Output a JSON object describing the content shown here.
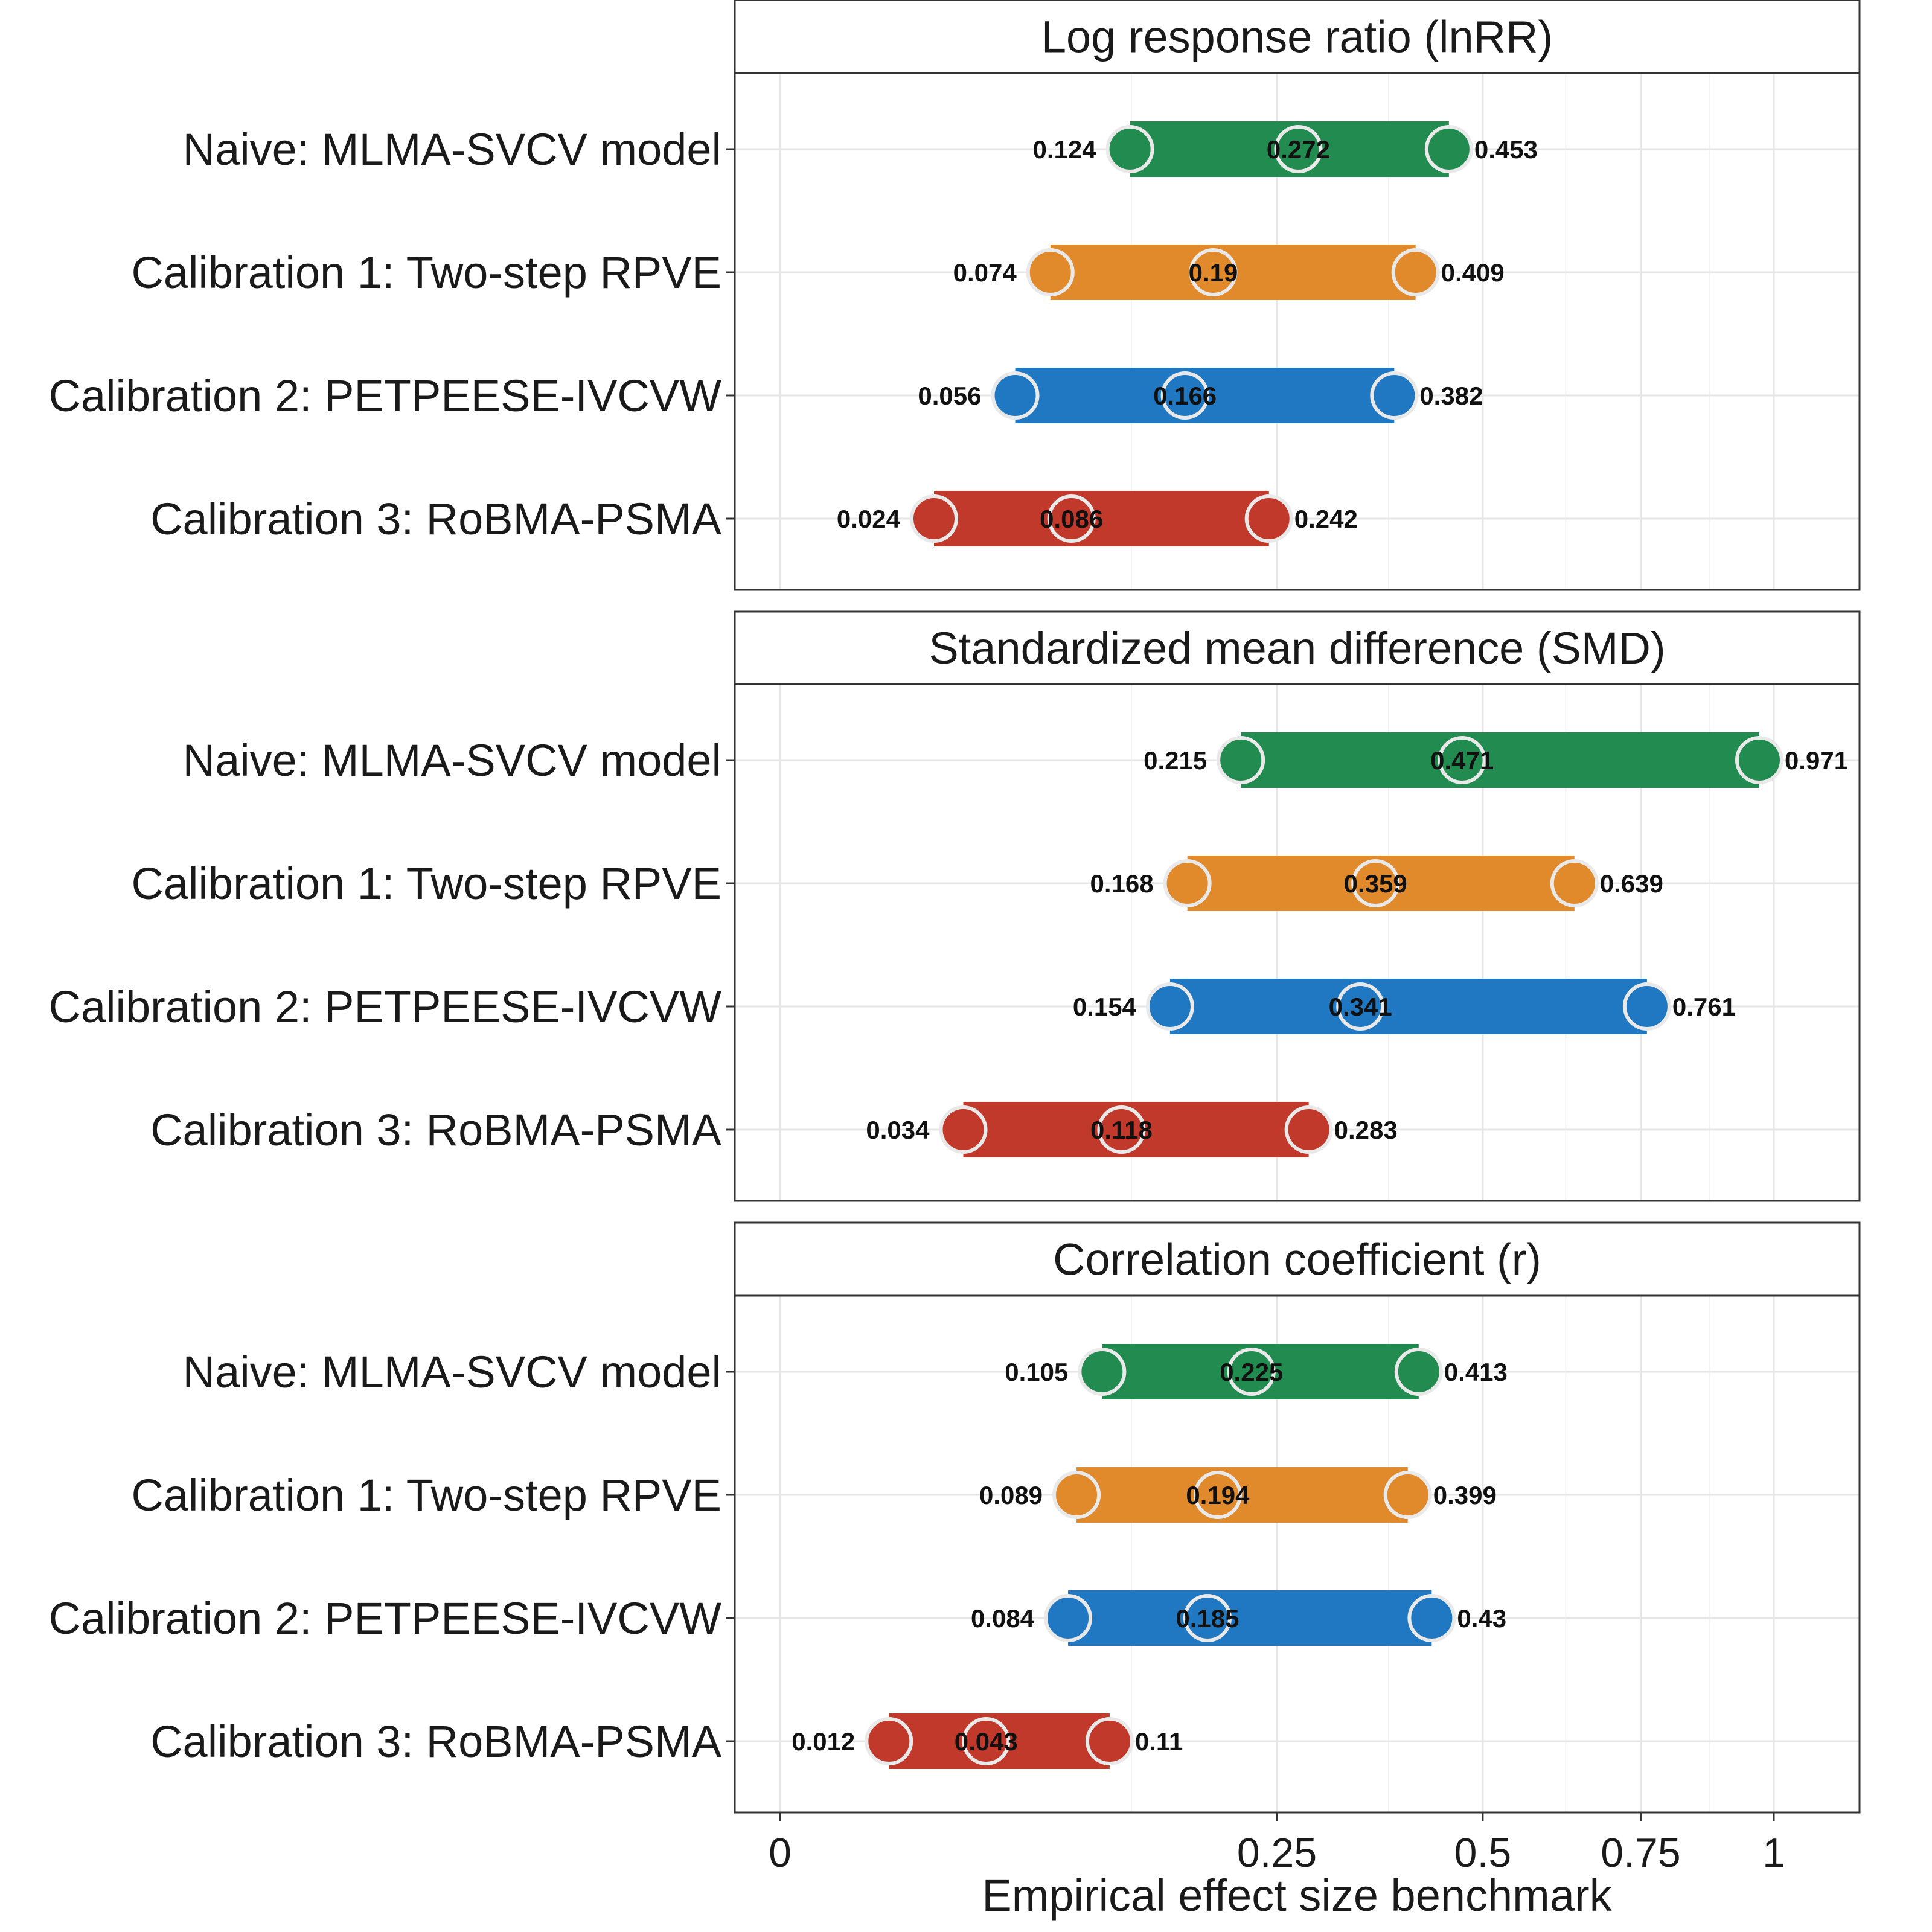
{
  "chart_data": {
    "type": "dot-range",
    "xlabel": "Empirical effect size benchmark",
    "xlim": [
      0,
      1.05
    ],
    "xticks": [
      0,
      0.25,
      0.5,
      0.75,
      1
    ],
    "xtick_labels": [
      "0",
      "0.25",
      "0.5",
      "0.75",
      "1"
    ],
    "grid": true,
    "x_scale": "sqrt",
    "series_colors": [
      "#228B50",
      "#E08A2C",
      "#1F78C1",
      "#C0392B"
    ],
    "panels": [
      {
        "title": "Log response ratio (lnRR)",
        "rows": [
          {
            "label": "Naive: MLMA-SVCV model",
            "low": 0.124,
            "mid": 0.272,
            "high": 0.453,
            "low_label": "0.124",
            "mid_label": "0.272",
            "high_label": "0.453"
          },
          {
            "label": "Calibration 1: Two-step RPVE",
            "low": 0.074,
            "mid": 0.19,
            "high": 0.409,
            "low_label": "0.074",
            "mid_label": "0.19",
            "high_label": "0.409"
          },
          {
            "label": "Calibration 2: PETPEESE-IVCVW",
            "low": 0.056,
            "mid": 0.166,
            "high": 0.382,
            "low_label": "0.056",
            "mid_label": "0.166",
            "high_label": "0.382"
          },
          {
            "label": "Calibration 3: RoBMA-PSMA",
            "low": 0.024,
            "mid": 0.086,
            "high": 0.242,
            "low_label": "0.024",
            "mid_label": "0.086",
            "high_label": "0.242"
          }
        ]
      },
      {
        "title": "Standardized mean difference (SMD)",
        "rows": [
          {
            "label": "Naive: MLMA-SVCV model",
            "low": 0.215,
            "mid": 0.471,
            "high": 0.971,
            "low_label": "0.215",
            "mid_label": "0.471",
            "high_label": "0.971"
          },
          {
            "label": "Calibration 1: Two-step RPVE",
            "low": 0.168,
            "mid": 0.359,
            "high": 0.639,
            "low_label": "0.168",
            "mid_label": "0.359",
            "high_label": "0.639"
          },
          {
            "label": "Calibration 2: PETPEESE-IVCVW",
            "low": 0.154,
            "mid": 0.341,
            "high": 0.761,
            "low_label": "0.154",
            "mid_label": "0.341",
            "high_label": "0.761"
          },
          {
            "label": "Calibration 3: RoBMA-PSMA",
            "low": 0.034,
            "mid": 0.118,
            "high": 0.283,
            "low_label": "0.034",
            "mid_label": "0.118",
            "high_label": "0.283"
          }
        ]
      },
      {
        "title": "Correlation coefficient (r)",
        "rows": [
          {
            "label": "Naive: MLMA-SVCV model",
            "low": 0.105,
            "mid": 0.225,
            "high": 0.413,
            "low_label": "0.105",
            "mid_label": "0.225",
            "high_label": "0.413"
          },
          {
            "label": "Calibration 1: Two-step RPVE",
            "low": 0.089,
            "mid": 0.194,
            "high": 0.399,
            "low_label": "0.089",
            "mid_label": "0.194",
            "high_label": "0.399"
          },
          {
            "label": "Calibration 2: PETPEESE-IVCVW",
            "low": 0.084,
            "mid": 0.185,
            "high": 0.43,
            "low_label": "0.084",
            "mid_label": "0.185",
            "high_label": "0.43"
          },
          {
            "label": "Calibration 3: RoBMA-PSMA",
            "low": 0.012,
            "mid": 0.043,
            "high": 0.11,
            "low_label": "0.012",
            "mid_label": "0.043",
            "high_label": "0.11"
          }
        ]
      }
    ]
  }
}
